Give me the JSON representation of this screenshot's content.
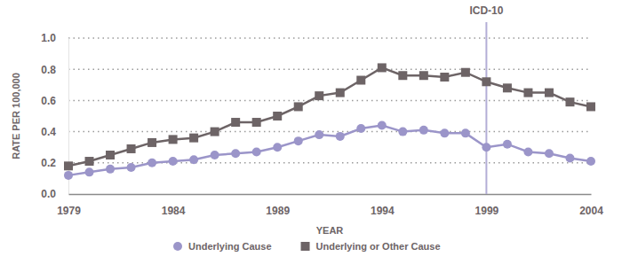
{
  "chart_data": {
    "type": "line",
    "x_label": "YEAR",
    "y_label": "RATE PER 100,000",
    "x": [
      1979,
      1980,
      1981,
      1982,
      1983,
      1984,
      1985,
      1986,
      1987,
      1988,
      1989,
      1990,
      1991,
      1992,
      1993,
      1994,
      1995,
      1996,
      1997,
      1998,
      1999,
      2000,
      2001,
      2002,
      2003,
      2004
    ],
    "series": [
      {
        "name": "Underlying Cause",
        "color": "#9b95c9",
        "marker": "circle",
        "values": [
          0.12,
          0.14,
          0.16,
          0.17,
          0.2,
          0.21,
          0.22,
          0.25,
          0.26,
          0.27,
          0.3,
          0.34,
          0.38,
          0.37,
          0.42,
          0.44,
          0.4,
          0.41,
          0.39,
          0.39,
          0.3,
          0.32,
          0.27,
          0.26,
          0.23,
          0.21
        ]
      },
      {
        "name": "Underlying or Other Cause",
        "color": "#6d6466",
        "marker": "square",
        "values": [
          0.18,
          0.21,
          0.25,
          0.29,
          0.33,
          0.35,
          0.36,
          0.4,
          0.46,
          0.46,
          0.5,
          0.56,
          0.63,
          0.65,
          0.73,
          0.81,
          0.76,
          0.76,
          0.75,
          0.78,
          0.72,
          0.68,
          0.65,
          0.65,
          0.59,
          0.56
        ]
      }
    ],
    "xlim": [
      1979,
      2004
    ],
    "xticks": [
      1979,
      1984,
      1989,
      1994,
      1999,
      2004
    ],
    "ylim": [
      0,
      1
    ],
    "yticks": [
      {
        "value": 0,
        "label": "0.0"
      },
      0.2,
      0.4,
      0.6,
      0.8,
      {
        "value": 1,
        "label": "1.0"
      }
    ],
    "grid": true,
    "legend": "bottom",
    "annotations": [
      {
        "x": 1999,
        "text": "ICD-10"
      }
    ]
  }
}
